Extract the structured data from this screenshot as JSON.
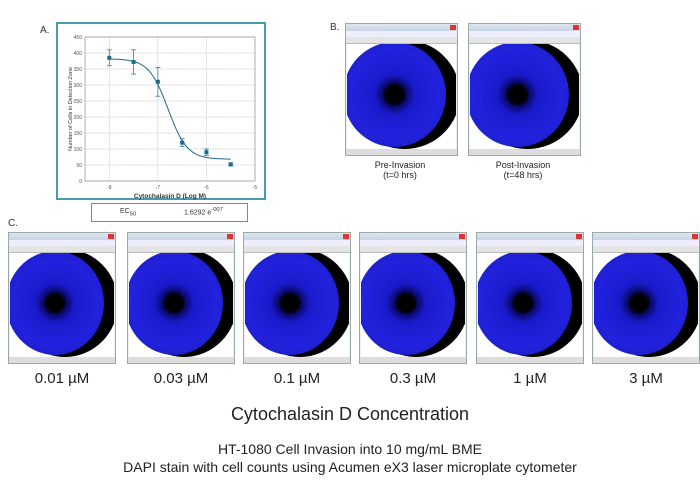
{
  "panel_labels": {
    "a": "A.",
    "b": "B.",
    "c": "C."
  },
  "chart_data": {
    "type": "scatter",
    "fit": "sigmoidal dose-response curve",
    "xlabel": "Cytochalasin D (Log M)",
    "ylabel": "Number of Cells in Detection Zone",
    "xlim": [
      -8.5,
      -5
    ],
    "ylim": [
      0,
      450
    ],
    "xticks": [
      -8,
      -7,
      -6,
      -5
    ],
    "yticks": [
      0,
      50,
      100,
      150,
      200,
      250,
      300,
      350,
      400,
      450
    ],
    "grid": true,
    "points": [
      {
        "x": -8,
        "y": 385,
        "err": 25
      },
      {
        "x": -7.5,
        "y": 372,
        "err": 38
      },
      {
        "x": -7,
        "y": 310,
        "err": 45
      },
      {
        "x": -6.5,
        "y": 120,
        "err": 12
      },
      {
        "x": -6,
        "y": 90,
        "err": 10
      },
      {
        "x": -5.5,
        "y": 52,
        "err": 5
      }
    ],
    "curve": {
      "top": 382,
      "bottom": 68,
      "logEC50": -6.79,
      "hill": 2.2
    },
    "colors": {
      "marker": "#1f6a86",
      "frame": "#4d9aa8"
    }
  },
  "ec50": {
    "label": "EC",
    "sub": "50",
    "value": "1.6292 e",
    "exp": "-007"
  },
  "panel_b": [
    {
      "title": "Pre-Invasion",
      "sub": "(t=0 hrs)"
    },
    {
      "title": "Post-Invasion",
      "sub": "(t=48 hrs)"
    }
  ],
  "panel_c": [
    "0.01 µM",
    "0.03 µM",
    "0.1 µM",
    "0.3 µM",
    "1 µM",
    "3 µM"
  ],
  "concentration_title": "Cytochalasin D Concentration",
  "footer": [
    "HT-1080 Cell Invasion into 10 mg/mL BME",
    "DAPI stain with cell counts using Acumen eX3 laser microplate cytometer"
  ]
}
